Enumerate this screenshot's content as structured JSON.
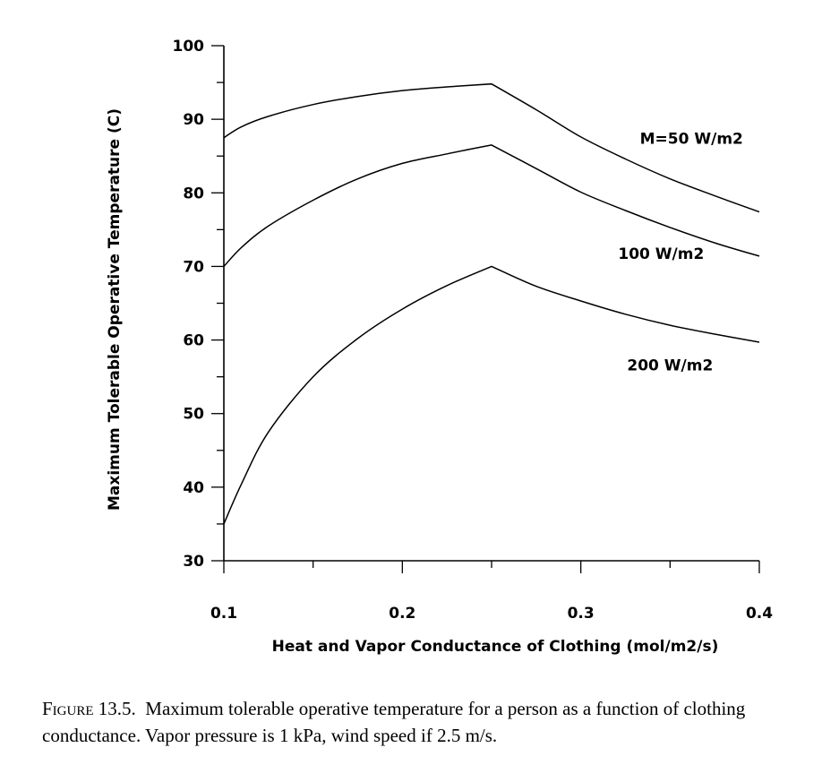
{
  "chart_data": {
    "type": "line",
    "title": "",
    "xlabel": "Heat and Vapor Conductance of Clothing (mol/m2/s)",
    "ylabel": "Maximum Tolerable Operative Temperature (C)",
    "xlim": [
      0.1,
      0.4
    ],
    "ylim": [
      30,
      100
    ],
    "xticks": [
      0.1,
      0.2,
      0.3,
      0.4
    ],
    "xtick_labels": [
      "0.1",
      "0.2",
      "0.3",
      "0.4"
    ],
    "yticks": [
      30,
      40,
      50,
      60,
      70,
      80,
      90,
      100
    ],
    "ytick_labels": [
      "30",
      "40",
      "50",
      "60",
      "70",
      "80",
      "90",
      "100"
    ],
    "grid": false,
    "legend": "none",
    "series": [
      {
        "name": "M=50 W/m2",
        "x": [
          0.1,
          0.11,
          0.125,
          0.15,
          0.175,
          0.2,
          0.225,
          0.25,
          0.275,
          0.3,
          0.325,
          0.35,
          0.375,
          0.4
        ],
        "y": [
          87.5,
          89.0,
          90.4,
          92.0,
          93.1,
          93.9,
          94.4,
          94.8,
          91.3,
          87.6,
          84.6,
          81.9,
          79.6,
          77.4
        ]
      },
      {
        "name": "100 W/m2",
        "x": [
          0.1,
          0.11,
          0.125,
          0.15,
          0.175,
          0.2,
          0.225,
          0.25,
          0.275,
          0.3,
          0.325,
          0.35,
          0.375,
          0.4
        ],
        "y": [
          70.0,
          72.6,
          75.5,
          79.0,
          81.9,
          84.0,
          85.3,
          86.5,
          83.3,
          80.1,
          77.6,
          75.3,
          73.2,
          71.4
        ]
      },
      {
        "name": "200 W/m2",
        "x": [
          0.1,
          0.11,
          0.125,
          0.15,
          0.175,
          0.2,
          0.225,
          0.25,
          0.275,
          0.3,
          0.325,
          0.35,
          0.375,
          0.4
        ],
        "y": [
          35.0,
          40.5,
          47.5,
          55.0,
          60.2,
          64.2,
          67.4,
          70.0,
          67.3,
          65.3,
          63.5,
          62.0,
          60.8,
          59.7
        ]
      }
    ],
    "annotations": [
      "M=50 W/m2",
      "100 W/m2",
      "200 W/m2"
    ]
  },
  "caption": {
    "figure_label": "Figure 13.5.",
    "text": "Maximum tolerable operative temperature for a person as a function of clothing conductance. Vapor pressure is 1 kPa, wind speed if 2.5 m/s."
  }
}
